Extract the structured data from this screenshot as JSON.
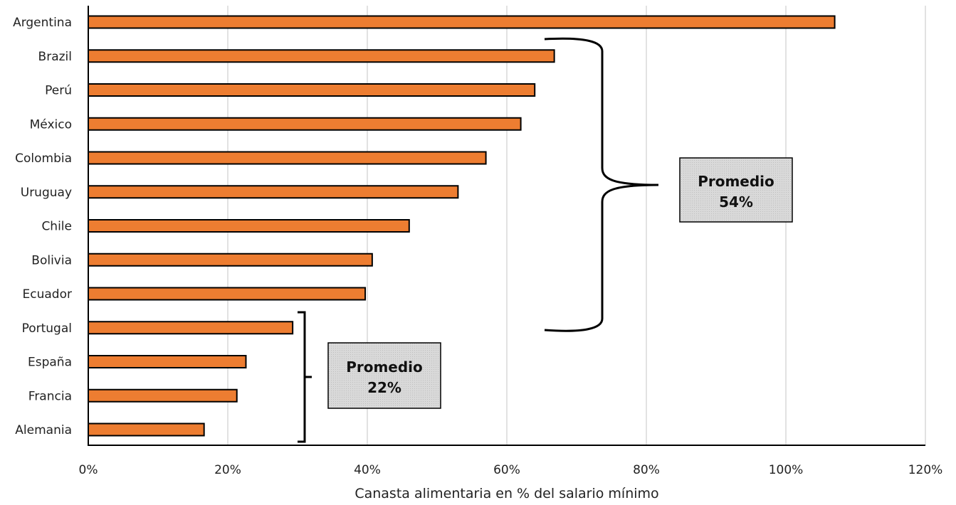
{
  "chart_data": {
    "type": "bar",
    "orientation": "horizontal",
    "categories": [
      "Argentina",
      "Brazil",
      "Perú",
      "México",
      "Colombia",
      "Uruguay",
      "Chile",
      "Bolivia",
      "Ecuador",
      "Portugal",
      "España",
      "Francia",
      "Alemania"
    ],
    "values": [
      107,
      66.8,
      64,
      62,
      57,
      53,
      46,
      40.7,
      39.7,
      29.3,
      22.6,
      21.3,
      16.6
    ],
    "xlabel": "Canasta alimentaria en % del salario mínimo",
    "ylabel": "",
    "xlim": [
      0,
      120
    ],
    "xticks": [
      0,
      20,
      40,
      60,
      80,
      100,
      120
    ],
    "xtick_labels": [
      "0%",
      "20%",
      "40%",
      "60%",
      "80%",
      "100%",
      "120%"
    ],
    "grid": "vertical",
    "bar_color": "#ED7D31",
    "annotations": [
      {
        "name": "promedio-latam",
        "line1": "Promedio",
        "line2": "54%",
        "covers": [
          "Brazil",
          "Ecuador"
        ]
      },
      {
        "name": "promedio-europa",
        "line1": "Promedio",
        "line2": "22%",
        "covers": [
          "Portugal",
          "Alemania"
        ]
      }
    ]
  }
}
